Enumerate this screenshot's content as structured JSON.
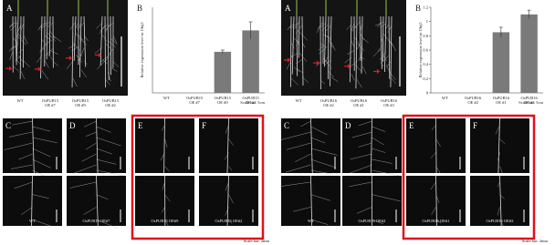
{
  "figures": [
    {
      "photo": {
        "letter": "A",
        "lanes": [
          [
            "WT"
          ],
          [
            "OsPUB15",
            "OE #7"
          ],
          [
            "OsPUB15",
            "OE #9"
          ],
          [
            "OsPUB15",
            "OE #2"
          ]
        ],
        "scale": "Scale bar: 5cm"
      },
      "chart": {
        "letter": "B",
        "type": "bar",
        "ylabel": "Relative expression level to Ubq5",
        "categories": [
          [
            "WT"
          ],
          [
            "OsPUB15",
            "OE #7"
          ],
          [
            "OsPUB15",
            "OE #9"
          ],
          [
            "OsPUB15",
            "OE #2"
          ]
        ],
        "values": [
          0,
          0,
          0.48,
          0.73
        ],
        "errors": [
          null,
          null,
          0.02,
          0.1
        ],
        "ylim": [
          0,
          1
        ],
        "color": "#7a7a7a"
      },
      "roots": {
        "panels": [
          {
            "letter": "C",
            "label": "WT"
          },
          {
            "letter": "D",
            "label": "OsPUB15 OE#7"
          },
          {
            "letter": "E",
            "label": "OsPUB15 OE#9"
          },
          {
            "letter": "F",
            "label": "OsPUB15 OE#2"
          }
        ],
        "scale": "Scale bar: 2mm"
      }
    },
    {
      "photo": {
        "letter": "A",
        "lanes": [
          [
            "WT"
          ],
          [
            "OsPUB16",
            "OE #2"
          ],
          [
            "OsPUB16",
            "OE #1"
          ],
          [
            "OsPUB16",
            "OE #3"
          ]
        ],
        "scale": "Scale bar: 5cm"
      },
      "chart": {
        "letter": "B",
        "type": "bar",
        "ylabel": "Relative expression level to Ubq5",
        "categories": [
          [
            "WT"
          ],
          [
            "OsPUB16",
            "OE #2"
          ],
          [
            "OsPUB16",
            "OE #1"
          ],
          [
            "OsPUB16",
            "OE #3"
          ]
        ],
        "values": [
          0,
          0,
          0.85,
          1.1
        ],
        "errors": [
          null,
          null,
          0.07,
          0.06
        ],
        "ylim": [
          0,
          1.2
        ],
        "yticks": [
          0,
          0.2,
          0.4,
          0.6,
          0.8,
          1,
          1.2
        ],
        "color": "#7a7a7a"
      },
      "roots": {
        "panels": [
          {
            "letter": "C",
            "label": "WT"
          },
          {
            "letter": "D",
            "label": "OsPUB16 OE#2"
          },
          {
            "letter": "E",
            "label": "OsPUB16 OE#1"
          },
          {
            "letter": "F",
            "label": "OsPUB16 OE#3"
          }
        ],
        "scale": "Scale bar: 2mm"
      }
    }
  ]
}
